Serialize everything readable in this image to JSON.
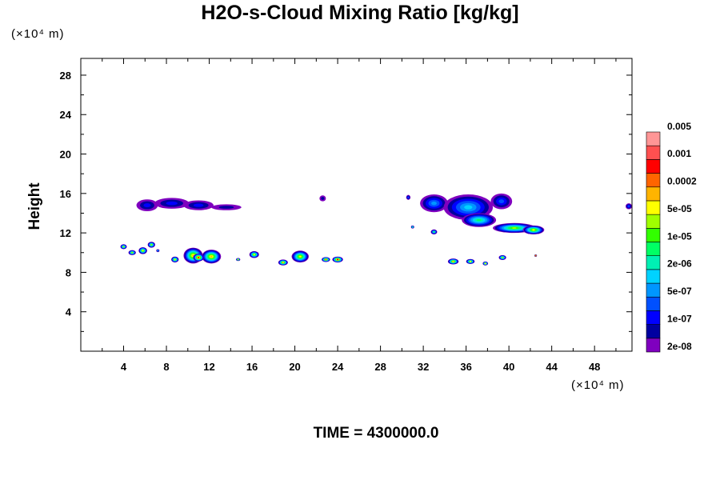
{
  "chart_data": {
    "type": "heatmap",
    "title": "H2O-s-Cloud Mixing Ratio [kg/kg]",
    "ylabel": "Height",
    "xunit": "(×10⁴ m)",
    "yunit": "(×10⁴ m)",
    "xlim": [
      0,
      51.5
    ],
    "ylim": [
      0,
      29.7
    ],
    "xticks": [
      4,
      8,
      12,
      16,
      20,
      24,
      28,
      32,
      36,
      40,
      44,
      48
    ],
    "yticks": [
      4,
      8,
      12,
      16,
      20,
      24,
      28
    ],
    "time_label": "TIME = 4300000.0",
    "colorbar": {
      "colors": [
        "#7f00bf",
        "#0000a0",
        "#0000ff",
        "#0050ff",
        "#0096ff",
        "#00d2ff",
        "#00f0b4",
        "#00ff64",
        "#32ff00",
        "#a0ff00",
        "#ffff00",
        "#ffb400",
        "#ff6400",
        "#ff0000",
        "#ff5050",
        "#ff9696"
      ],
      "labels": [
        "2e-08",
        "1e-07",
        "5e-07",
        "2e-06",
        "1e-05",
        "5e-05",
        "0.0002",
        "0.001",
        "0.005"
      ]
    },
    "regions": [
      {
        "x": 6.2,
        "y": 14.8,
        "rx": 1.0,
        "ry": 0.6,
        "level": 2
      },
      {
        "x": 8.5,
        "y": 15.0,
        "rx": 1.6,
        "ry": 0.55,
        "level": 2
      },
      {
        "x": 11.0,
        "y": 14.8,
        "rx": 1.4,
        "ry": 0.5,
        "level": 2
      },
      {
        "x": 13.6,
        "y": 14.6,
        "rx": 1.4,
        "ry": 0.3,
        "level": 1
      },
      {
        "x": 22.6,
        "y": 15.5,
        "rx": 0.3,
        "ry": 0.3,
        "level": 1
      },
      {
        "x": 4.0,
        "y": 10.6,
        "rx": 0.3,
        "ry": 0.25,
        "level": 9
      },
      {
        "x": 4.8,
        "y": 10.0,
        "rx": 0.35,
        "ry": 0.25,
        "level": 9
      },
      {
        "x": 5.8,
        "y": 10.2,
        "rx": 0.4,
        "ry": 0.35,
        "level": 10
      },
      {
        "x": 6.6,
        "y": 10.8,
        "rx": 0.35,
        "ry": 0.3,
        "level": 9
      },
      {
        "x": 7.2,
        "y": 10.2,
        "rx": 0.15,
        "ry": 0.15,
        "level": 4
      },
      {
        "x": 8.8,
        "y": 9.3,
        "rx": 0.35,
        "ry": 0.3,
        "level": 10
      },
      {
        "x": 10.5,
        "y": 9.7,
        "rx": 0.9,
        "ry": 0.8,
        "level": 11
      },
      {
        "x": 12.2,
        "y": 9.6,
        "rx": 0.9,
        "ry": 0.7,
        "level": 11
      },
      {
        "x": 11.0,
        "y": 9.5,
        "rx": 0.5,
        "ry": 0.4,
        "level": 13
      },
      {
        "x": 14.7,
        "y": 9.3,
        "rx": 0.2,
        "ry": 0.15,
        "level": 9
      },
      {
        "x": 16.2,
        "y": 9.8,
        "rx": 0.45,
        "ry": 0.35,
        "level": 10
      },
      {
        "x": 18.9,
        "y": 9.0,
        "rx": 0.45,
        "ry": 0.3,
        "level": 11
      },
      {
        "x": 20.5,
        "y": 9.6,
        "rx": 0.8,
        "ry": 0.6,
        "level": 10
      },
      {
        "x": 22.9,
        "y": 9.3,
        "rx": 0.4,
        "ry": 0.25,
        "level": 12
      },
      {
        "x": 24.0,
        "y": 9.3,
        "rx": 0.5,
        "ry": 0.3,
        "level": 13
      },
      {
        "x": 30.6,
        "y": 15.6,
        "rx": 0.2,
        "ry": 0.25,
        "level": 3
      },
      {
        "x": 31.0,
        "y": 12.6,
        "rx": 0.15,
        "ry": 0.15,
        "level": 6
      },
      {
        "x": 33.0,
        "y": 15.0,
        "rx": 1.3,
        "ry": 0.9,
        "level": 4
      },
      {
        "x": 36.2,
        "y": 14.6,
        "rx": 2.3,
        "ry": 1.3,
        "level": 5
      },
      {
        "x": 39.3,
        "y": 15.2,
        "rx": 1.0,
        "ry": 0.8,
        "level": 3
      },
      {
        "x": 37.2,
        "y": 13.3,
        "rx": 1.6,
        "ry": 0.7,
        "level": 7
      },
      {
        "x": 40.5,
        "y": 12.5,
        "rx": 2.0,
        "ry": 0.5,
        "level": 9
      },
      {
        "x": 42.3,
        "y": 12.3,
        "rx": 1.0,
        "ry": 0.45,
        "level": 10
      },
      {
        "x": 33.0,
        "y": 12.1,
        "rx": 0.3,
        "ry": 0.25,
        "level": 7
      },
      {
        "x": 34.8,
        "y": 9.1,
        "rx": 0.5,
        "ry": 0.3,
        "level": 11
      },
      {
        "x": 36.4,
        "y": 9.1,
        "rx": 0.4,
        "ry": 0.25,
        "level": 10
      },
      {
        "x": 37.8,
        "y": 8.9,
        "rx": 0.25,
        "ry": 0.2,
        "level": 10
      },
      {
        "x": 39.4,
        "y": 9.5,
        "rx": 0.35,
        "ry": 0.25,
        "level": 9
      },
      {
        "x": 42.5,
        "y": 9.7,
        "rx": 0.12,
        "ry": 0.12,
        "level": 12
      },
      {
        "x": 51.2,
        "y": 14.7,
        "rx": 0.3,
        "ry": 0.3,
        "level": 3
      }
    ]
  }
}
